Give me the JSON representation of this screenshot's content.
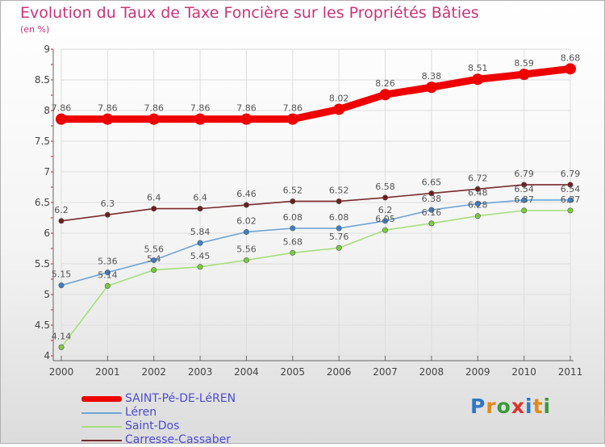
{
  "title": "Evolution du Taux de Taxe Foncière sur les Propriétés Bâties",
  "subtitle": "(en %)",
  "colors": {
    "title": "#cc3377",
    "legend_text": "#4b4bd6",
    "grid": "#dddddd",
    "axis": "#666666"
  },
  "logo": {
    "text": "Proxiti",
    "letters": [
      {
        "char": "P",
        "color": "#2f78c4"
      },
      {
        "char": "r",
        "color": "#e0891a"
      },
      {
        "char": "o",
        "color": "#3a9a3a"
      },
      {
        "char": "x",
        "color": "#d9342b"
      },
      {
        "char": "i",
        "color": "#2f78c4"
      },
      {
        "char": "t",
        "color": "#e0891a"
      },
      {
        "char": "i",
        "color": "#3a9a3a"
      }
    ]
  },
  "chart_data": {
    "type": "line",
    "title": "Evolution du Taux de Taxe Foncière sur les Propriétés Bâties",
    "subtitle": "(en %)",
    "xlabel": "",
    "ylabel": "",
    "x": [
      "2000",
      "2001",
      "2002",
      "2003",
      "2004",
      "2005",
      "2006",
      "2007",
      "2008",
      "2009",
      "2010",
      "2011"
    ],
    "ylim": [
      4,
      9
    ],
    "yticks": [
      "4",
      "4.5",
      "5",
      "5.5",
      "6",
      "6.5",
      "7",
      "7.5",
      "8",
      "8.5",
      "9"
    ],
    "grid": true,
    "legend_position": "bottom-left",
    "series": [
      {
        "name": "SAINT-Pé-DE-LéREN",
        "color": "#ee0000",
        "emphasis": "thick",
        "values": [
          7.86,
          7.86,
          7.86,
          7.86,
          7.86,
          7.86,
          8.02,
          8.26,
          8.38,
          8.51,
          8.59,
          8.68
        ],
        "labels": [
          "7.86",
          "7.86",
          "7.86",
          "7.86",
          "7.86",
          "7.86",
          "8.02",
          "8.26",
          "8.38",
          "8.51",
          "8.59",
          "8.68"
        ]
      },
      {
        "name": "Léren",
        "color": "#6ea5d6",
        "marker": "#3c80c8",
        "values": [
          5.15,
          5.36,
          5.56,
          5.84,
          6.02,
          6.08,
          6.08,
          6.2,
          6.38,
          6.48,
          6.54,
          6.54
        ],
        "labels": [
          "5.15",
          "5.36",
          "5.56",
          "5.84",
          "6.02",
          "6.08",
          "6.08",
          "6.2",
          "6.38",
          "6.48",
          "6.54",
          "6.54"
        ]
      },
      {
        "name": "Saint-Dos",
        "color": "#a5e07a",
        "marker": "#79cc3a",
        "values": [
          4.14,
          5.14,
          5.4,
          5.45,
          5.56,
          5.68,
          5.76,
          6.05,
          6.16,
          6.28,
          6.37,
          6.37
        ],
        "labels": [
          "4.14",
          "5.14",
          "5.4",
          "5.45",
          "5.56",
          "5.68",
          "5.76",
          "6.05",
          "6.16",
          "6.28",
          "6.37",
          "6.37"
        ]
      },
      {
        "name": "Carresse-Cassaber",
        "color": "#7a2a2a",
        "marker": "#6e1e1e",
        "values": [
          6.2,
          6.3,
          6.4,
          6.4,
          6.46,
          6.52,
          6.52,
          6.58,
          6.65,
          6.72,
          6.79,
          6.79
        ],
        "labels": [
          "6.2",
          "6.3",
          "6.4",
          "6.4",
          "6.46",
          "6.52",
          "6.52",
          "6.58",
          "6.65",
          "6.72",
          "6.79",
          "6.79"
        ]
      }
    ]
  }
}
